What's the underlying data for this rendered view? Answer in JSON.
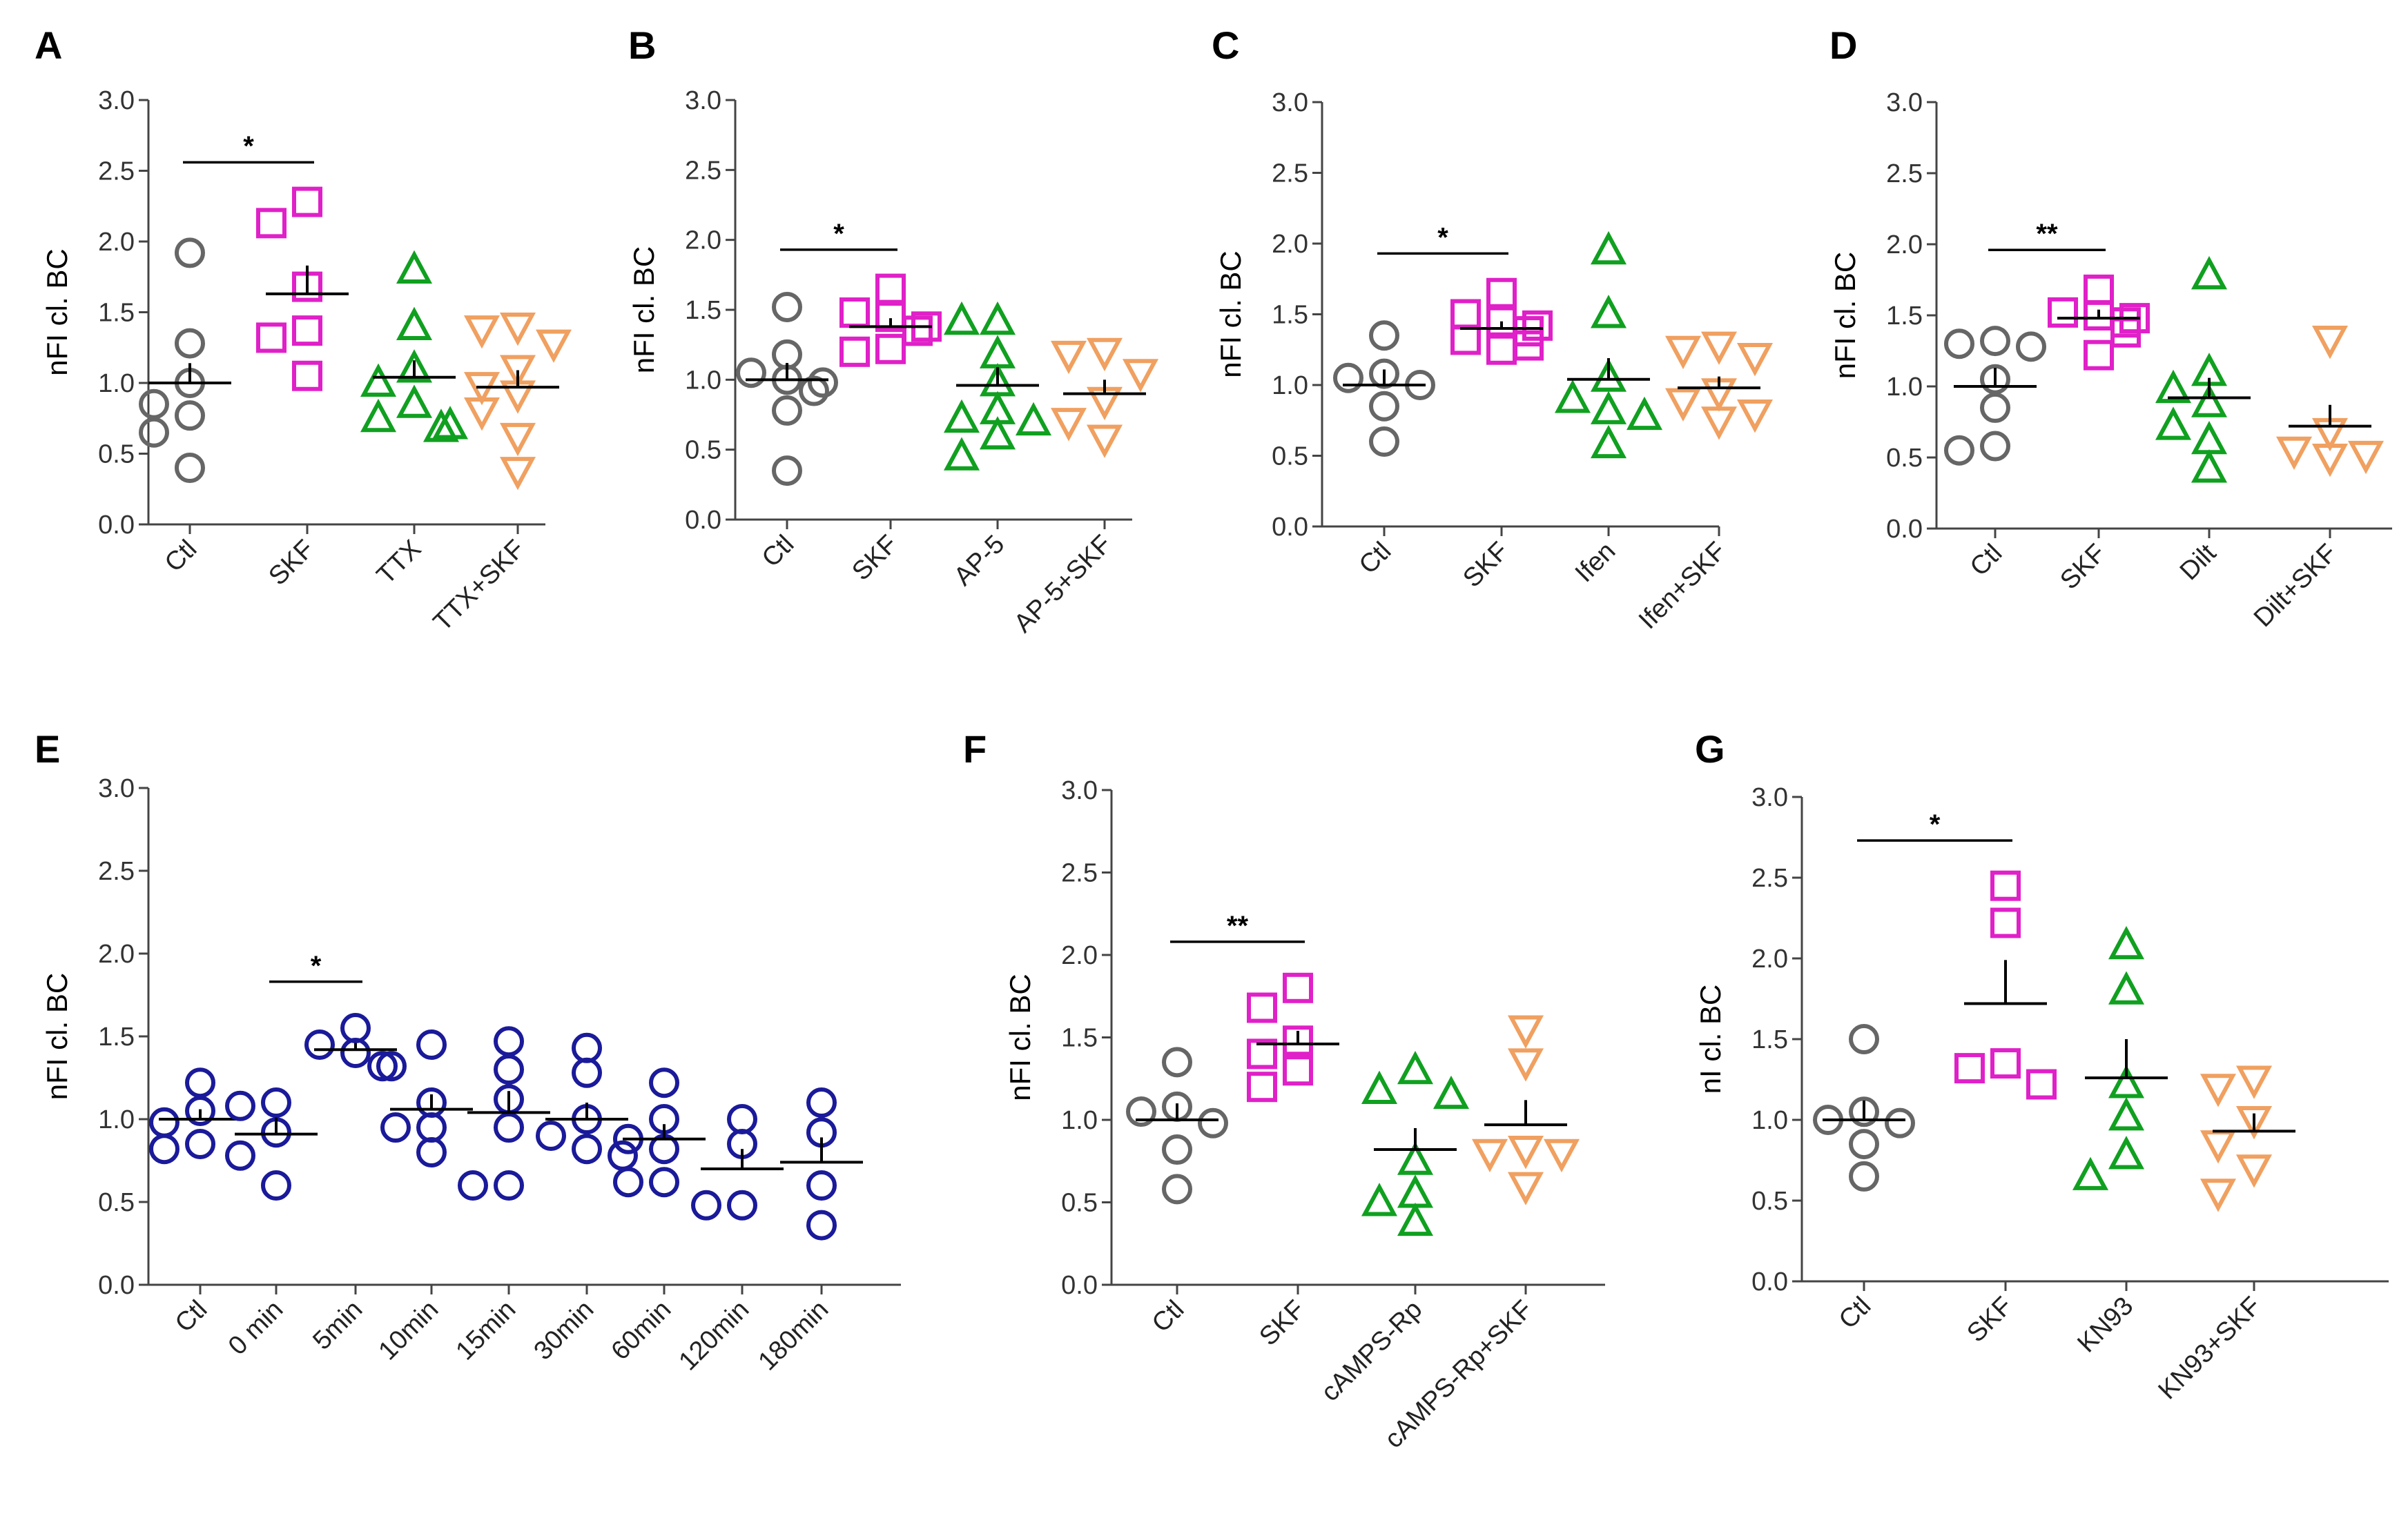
{
  "colors": {
    "ctl": "#666666",
    "skf": "#E020C8",
    "green": "#10A020",
    "orange": "#F0A060",
    "blue": "#1A1A9A"
  },
  "chart_data": [
    {
      "id": "A",
      "type": "scatter",
      "ylabel": "nFI cl. BC",
      "ylim": [
        0,
        3
      ],
      "yticks": [
        "0.0",
        "0.5",
        "1.0",
        "1.5",
        "2.0",
        "2.5",
        "3.0"
      ],
      "sig": [
        {
          "from": 0,
          "to": 1,
          "label": "*"
        }
      ],
      "groups": [
        {
          "name": "Ctl",
          "marker": "circle",
          "color": "#666666",
          "mean": 1.0,
          "sem": 0.14,
          "values": [
            1.92,
            1.28,
            1.0,
            0.85,
            0.77,
            0.65,
            0.4
          ]
        },
        {
          "name": "SKF",
          "marker": "square",
          "color": "#E020C8",
          "mean": 1.63,
          "sem": 0.2,
          "values": [
            2.28,
            2.13,
            1.68,
            1.37,
            1.32,
            1.05
          ]
        },
        {
          "name": "TTX",
          "marker": "tri-up",
          "color": "#10A020",
          "mean": 1.04,
          "sem": 0.12,
          "values": [
            1.8,
            1.4,
            1.1,
            1.0,
            0.85,
            0.75,
            0.7,
            0.68
          ]
        },
        {
          "name": "TTX+SKF",
          "marker": "tri-down",
          "color": "#F0A060",
          "mean": 0.97,
          "sem": 0.12,
          "values": [
            1.4,
            1.38,
            1.28,
            1.1,
            0.98,
            0.92,
            0.8,
            0.62,
            0.38
          ]
        }
      ]
    },
    {
      "id": "B",
      "type": "scatter",
      "ylabel": "nFI cl. BC",
      "ylim": [
        0,
        3
      ],
      "yticks": [
        "0.0",
        "0.5",
        "1.0",
        "1.5",
        "2.0",
        "2.5",
        "3.0"
      ],
      "sig": [
        {
          "from": 0,
          "to": 1,
          "label": "*"
        }
      ],
      "groups": [
        {
          "name": "Ctl",
          "marker": "circle",
          "color": "#666666",
          "mean": 1.0,
          "sem": 0.12,
          "values": [
            1.52,
            1.18,
            1.05,
            1.0,
            0.98,
            0.92,
            0.78,
            0.35
          ]
        },
        {
          "name": "SKF",
          "marker": "square",
          "color": "#E020C8",
          "mean": 1.38,
          "sem": 0.06,
          "values": [
            1.65,
            1.48,
            1.45,
            1.38,
            1.35,
            1.22,
            1.2
          ]
        },
        {
          "name": "AP-5",
          "marker": "tri-up",
          "color": "#10A020",
          "mean": 0.96,
          "sem": 0.13,
          "values": [
            1.42,
            1.42,
            1.18,
            0.98,
            0.78,
            0.72,
            0.7,
            0.6,
            0.45
          ]
        },
        {
          "name": "AP-5+SKF",
          "marker": "tri-down",
          "color": "#F0A060",
          "mean": 0.9,
          "sem": 0.1,
          "values": [
            1.2,
            1.18,
            1.05,
            0.85,
            0.7,
            0.58
          ]
        }
      ]
    },
    {
      "id": "C",
      "type": "scatter",
      "ylabel": "nFI cl. BC",
      "ylim": [
        0,
        3
      ],
      "yticks": [
        "0.0",
        "0.5",
        "1.0",
        "1.5",
        "2.0",
        "2.5",
        "3.0"
      ],
      "sig": [
        {
          "from": 0,
          "to": 1,
          "label": "*"
        }
      ],
      "groups": [
        {
          "name": "Ctl",
          "marker": "circle",
          "color": "#666666",
          "mean": 1.0,
          "sem": 0.11,
          "values": [
            1.35,
            1.08,
            1.05,
            1.0,
            0.85,
            0.6
          ]
        },
        {
          "name": "SKF",
          "marker": "square",
          "color": "#E020C8",
          "mean": 1.4,
          "sem": 0.05,
          "values": [
            1.65,
            1.5,
            1.45,
            1.42,
            1.38,
            1.32,
            1.28,
            1.25
          ]
        },
        {
          "name": "Ifen",
          "marker": "tri-up",
          "color": "#10A020",
          "mean": 1.04,
          "sem": 0.15,
          "values": [
            1.95,
            1.5,
            1.05,
            0.9,
            0.82,
            0.78,
            0.58
          ]
        },
        {
          "name": "Ifen+SKF",
          "marker": "tri-down",
          "color": "#F0A060",
          "mean": 0.98,
          "sem": 0.08,
          "values": [
            1.28,
            1.25,
            1.2,
            0.95,
            0.88,
            0.8,
            0.75
          ]
        }
      ]
    },
    {
      "id": "D",
      "type": "scatter",
      "ylabel": "nFI cl. BC",
      "ylim": [
        0,
        3
      ],
      "yticks": [
        "0.0",
        "0.5",
        "1.0",
        "1.5",
        "2.0",
        "2.5",
        "3.0"
      ],
      "sig": [
        {
          "from": 0,
          "to": 1,
          "label": "**"
        }
      ],
      "groups": [
        {
          "name": "Ctl",
          "marker": "circle",
          "color": "#666666",
          "mean": 1.0,
          "sem": 0.13,
          "values": [
            1.32,
            1.3,
            1.28,
            1.05,
            0.85,
            0.58,
            0.55
          ]
        },
        {
          "name": "SKF",
          "marker": "square",
          "color": "#E020C8",
          "mean": 1.48,
          "sem": 0.06,
          "values": [
            1.68,
            1.52,
            1.5,
            1.48,
            1.45,
            1.38,
            1.22
          ]
        },
        {
          "name": "Dilt",
          "marker": "tri-up",
          "color": "#10A020",
          "mean": 0.92,
          "sem": 0.14,
          "values": [
            1.78,
            1.1,
            0.98,
            0.88,
            0.72,
            0.62,
            0.42
          ]
        },
        {
          "name": "Dilt+SKF",
          "marker": "tri-down",
          "color": "#F0A060",
          "mean": 0.72,
          "sem": 0.15,
          "values": [
            1.33,
            0.68,
            0.55,
            0.52,
            0.5
          ]
        }
      ]
    },
    {
      "id": "E",
      "type": "scatter",
      "ylabel": "nFI cl. BC",
      "ylim": [
        0,
        3
      ],
      "yticks": [
        "0.0",
        "0.5",
        "1.0",
        "1.5",
        "2.0",
        "2.5",
        "3.0"
      ],
      "sig": [
        {
          "from": 1,
          "to": 2,
          "label": "*"
        }
      ],
      "groups": [
        {
          "name": "Ctl",
          "marker": "circle",
          "color": "#1A1A9A",
          "mean": 1.0,
          "sem": 0.06,
          "values": [
            1.22,
            1.05,
            0.98,
            0.85,
            0.82
          ]
        },
        {
          "name": "0 min",
          "marker": "circle",
          "color": "#1A1A9A",
          "mean": 0.91,
          "sem": 0.1,
          "values": [
            1.1,
            1.08,
            0.92,
            0.78,
            0.6
          ]
        },
        {
          "name": "5min",
          "marker": "circle",
          "color": "#1A1A9A",
          "mean": 1.42,
          "sem": 0.04,
          "values": [
            1.55,
            1.45,
            1.4,
            1.32,
            1.32
          ]
        },
        {
          "name": "10min",
          "marker": "circle",
          "color": "#1A1A9A",
          "mean": 1.06,
          "sem": 0.09,
          "values": [
            1.45,
            1.1,
            0.95,
            0.95,
            0.8
          ]
        },
        {
          "name": "15min",
          "marker": "circle",
          "color": "#1A1A9A",
          "mean": 1.04,
          "sem": 0.13,
          "values": [
            1.47,
            1.3,
            1.12,
            0.95,
            0.6,
            0.6
          ]
        },
        {
          "name": "30min",
          "marker": "circle",
          "color": "#1A1A9A",
          "mean": 1.0,
          "sem": 0.1,
          "values": [
            1.43,
            1.28,
            1.0,
            0.9,
            0.82,
            0.78
          ]
        },
        {
          "name": "60min",
          "marker": "circle",
          "color": "#1A1A9A",
          "mean": 0.88,
          "sem": 0.09,
          "values": [
            1.22,
            1.0,
            0.88,
            0.82,
            0.62,
            0.62
          ]
        },
        {
          "name": "120min",
          "marker": "circle",
          "color": "#1A1A9A",
          "mean": 0.7,
          "sem": 0.12,
          "values": [
            1.0,
            0.85,
            0.48,
            0.48
          ]
        },
        {
          "name": "180min",
          "marker": "circle",
          "color": "#1A1A9A",
          "mean": 0.74,
          "sem": 0.15,
          "values": [
            1.1,
            0.92,
            0.6,
            0.36
          ]
        }
      ]
    },
    {
      "id": "F",
      "type": "scatter",
      "ylabel": "nFI cl. BC",
      "ylim": [
        0,
        3
      ],
      "yticks": [
        "0.0",
        "0.5",
        "1.0",
        "1.5",
        "2.0",
        "2.5",
        "3.0"
      ],
      "sig": [
        {
          "from": 0,
          "to": 1,
          "label": "**"
        }
      ],
      "groups": [
        {
          "name": "Ctl",
          "marker": "circle",
          "color": "#666666",
          "mean": 1.0,
          "sem": 0.1,
          "values": [
            1.35,
            1.08,
            1.05,
            0.98,
            0.82,
            0.58
          ]
        },
        {
          "name": "SKF",
          "marker": "square",
          "color": "#E020C8",
          "mean": 1.46,
          "sem": 0.08,
          "values": [
            1.8,
            1.68,
            1.48,
            1.4,
            1.3,
            1.2
          ]
        },
        {
          "name": "cAMPS-Rp",
          "marker": "tri-up",
          "color": "#10A020",
          "mean": 0.82,
          "sem": 0.13,
          "values": [
            1.3,
            1.18,
            1.15,
            0.75,
            0.55,
            0.5,
            0.38
          ]
        },
        {
          "name": "cAMPS-Rp+SKF",
          "marker": "tri-down",
          "color": "#F0A060",
          "mean": 0.97,
          "sem": 0.15,
          "values": [
            1.55,
            1.35,
            0.82,
            0.8,
            0.8,
            0.6
          ]
        }
      ]
    },
    {
      "id": "G",
      "type": "scatter",
      "ylabel": "nI cl. BC",
      "ylim": [
        0,
        3
      ],
      "yticks": [
        "0.0",
        "0.5",
        "1.0",
        "1.5",
        "2.0",
        "2.5",
        "3.0"
      ],
      "sig": [
        {
          "from": 0,
          "to": 1,
          "label": "*"
        }
      ],
      "groups": [
        {
          "name": "Ctl",
          "marker": "circle",
          "color": "#666666",
          "mean": 1.0,
          "sem": 0.12,
          "values": [
            1.5,
            1.05,
            1.0,
            0.98,
            0.85,
            0.65
          ]
        },
        {
          "name": "SKF",
          "marker": "square",
          "color": "#E020C8",
          "mean": 1.72,
          "sem": 0.27,
          "values": [
            2.45,
            2.22,
            1.35,
            1.32,
            1.22
          ]
        },
        {
          "name": "KN93",
          "marker": "tri-up",
          "color": "#10A020",
          "mean": 1.26,
          "sem": 0.24,
          "values": [
            2.08,
            1.8,
            1.22,
            1.02,
            0.78,
            0.65
          ]
        },
        {
          "name": "KN93+SKF",
          "marker": "tri-down",
          "color": "#F0A060",
          "mean": 0.93,
          "sem": 0.11,
          "values": [
            1.25,
            1.2,
            1.0,
            0.85,
            0.7,
            0.55
          ]
        }
      ]
    }
  ]
}
